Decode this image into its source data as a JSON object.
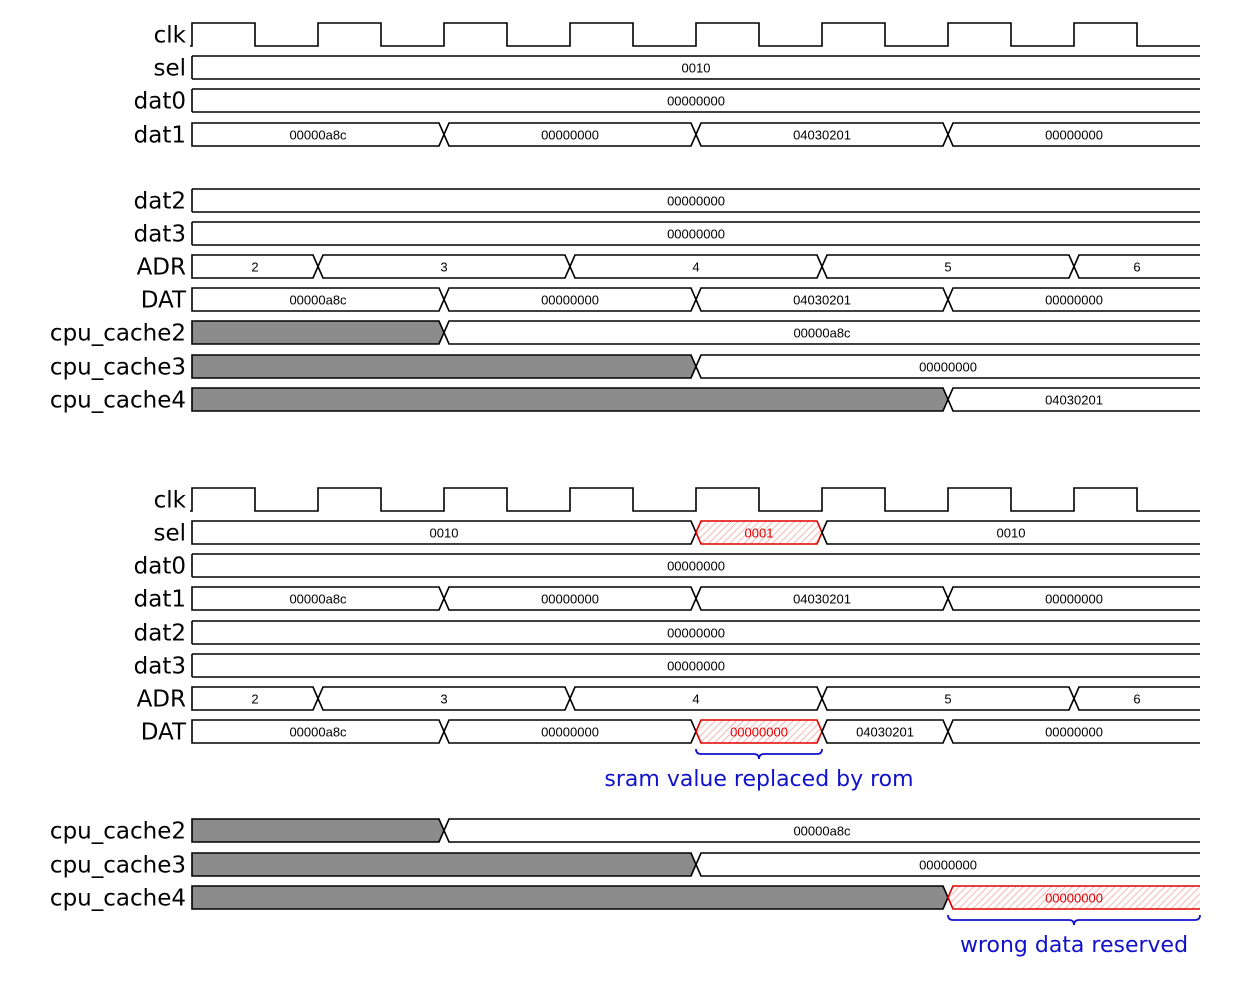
{
  "colors": {
    "line": "#000000",
    "unknown_fill": "#8c8c8c",
    "highlight": "#e00000",
    "annotation": "#1111cc"
  },
  "diagram_top": {
    "rows": [
      {
        "name": "clk",
        "type": "clock"
      },
      {
        "name": "sel",
        "segments": [
          {
            "value": "0010",
            "from": 0,
            "to": 16
          }
        ]
      },
      {
        "name": "dat0",
        "segments": [
          {
            "value": "00000000",
            "from": 0,
            "to": 16
          }
        ]
      },
      {
        "name": "dat1",
        "segments": [
          {
            "value": "00000a8c",
            "from": 0,
            "to": 4
          },
          {
            "value": "00000000",
            "from": 4,
            "to": 8
          },
          {
            "value": "04030201",
            "from": 8,
            "to": 12
          },
          {
            "value": "00000000",
            "from": 12,
            "to": 16
          }
        ]
      },
      {
        "name": "dat2",
        "segments": [
          {
            "value": "00000000",
            "from": 0,
            "to": 16
          }
        ]
      },
      {
        "name": "dat3",
        "segments": [
          {
            "value": "00000000",
            "from": 0,
            "to": 16
          }
        ]
      },
      {
        "name": "ADR",
        "segments": [
          {
            "value": "2",
            "from": 0,
            "to": 2
          },
          {
            "value": "3",
            "from": 2,
            "to": 6
          },
          {
            "value": "4",
            "from": 6,
            "to": 10
          },
          {
            "value": "5",
            "from": 10,
            "to": 14
          },
          {
            "value": "6",
            "from": 14,
            "to": 16
          }
        ]
      },
      {
        "name": "DAT",
        "segments": [
          {
            "value": "00000a8c",
            "from": 0,
            "to": 4
          },
          {
            "value": "00000000",
            "from": 4,
            "to": 8
          },
          {
            "value": "04030201",
            "from": 8,
            "to": 12
          },
          {
            "value": "00000000",
            "from": 12,
            "to": 16
          }
        ]
      },
      {
        "name": "cpu_cache2",
        "segments": [
          {
            "value": "",
            "from": 0,
            "to": 4,
            "style": "unknown"
          },
          {
            "value": "00000a8c",
            "from": 4,
            "to": 16
          }
        ]
      },
      {
        "name": "cpu_cache3",
        "segments": [
          {
            "value": "",
            "from": 0,
            "to": 8,
            "style": "unknown"
          },
          {
            "value": "00000000",
            "from": 8,
            "to": 16
          }
        ]
      },
      {
        "name": "cpu_cache4",
        "segments": [
          {
            "value": "",
            "from": 0,
            "to": 12,
            "style": "unknown"
          },
          {
            "value": "04030201",
            "from": 12,
            "to": 16
          }
        ]
      }
    ]
  },
  "diagram_bottom": {
    "rows": [
      {
        "name": "clk",
        "type": "clock"
      },
      {
        "name": "sel",
        "segments": [
          {
            "value": "0010",
            "from": 0,
            "to": 8
          },
          {
            "value": "0001",
            "from": 8,
            "to": 10,
            "style": "highlight"
          },
          {
            "value": "0010",
            "from": 10,
            "to": 16
          }
        ]
      },
      {
        "name": "dat0",
        "segments": [
          {
            "value": "00000000",
            "from": 0,
            "to": 16
          }
        ]
      },
      {
        "name": "dat1",
        "segments": [
          {
            "value": "00000a8c",
            "from": 0,
            "to": 4
          },
          {
            "value": "00000000",
            "from": 4,
            "to": 8
          },
          {
            "value": "04030201",
            "from": 8,
            "to": 12
          },
          {
            "value": "00000000",
            "from": 12,
            "to": 16
          }
        ]
      },
      {
        "name": "dat2",
        "segments": [
          {
            "value": "00000000",
            "from": 0,
            "to": 16
          }
        ]
      },
      {
        "name": "dat3",
        "segments": [
          {
            "value": "00000000",
            "from": 0,
            "to": 16
          }
        ]
      },
      {
        "name": "ADR",
        "segments": [
          {
            "value": "2",
            "from": 0,
            "to": 2
          },
          {
            "value": "3",
            "from": 2,
            "to": 6
          },
          {
            "value": "4",
            "from": 6,
            "to": 10
          },
          {
            "value": "5",
            "from": 10,
            "to": 14
          },
          {
            "value": "6",
            "from": 14,
            "to": 16
          }
        ]
      },
      {
        "name": "DAT",
        "segments": [
          {
            "value": "00000a8c",
            "from": 0,
            "to": 4
          },
          {
            "value": "00000000",
            "from": 4,
            "to": 8
          },
          {
            "value": "00000000",
            "from": 8,
            "to": 10,
            "style": "highlight"
          },
          {
            "value": "04030201",
            "from": 10,
            "to": 12
          },
          {
            "value": "00000000",
            "from": 12,
            "to": 16
          }
        ]
      },
      {
        "name": "cpu_cache2",
        "segments": [
          {
            "value": "",
            "from": 0,
            "to": 4,
            "style": "unknown"
          },
          {
            "value": "00000a8c",
            "from": 4,
            "to": 16
          }
        ]
      },
      {
        "name": "cpu_cache3",
        "segments": [
          {
            "value": "",
            "from": 0,
            "to": 8,
            "style": "unknown"
          },
          {
            "value": "00000000",
            "from": 8,
            "to": 16
          }
        ]
      },
      {
        "name": "cpu_cache4",
        "segments": [
          {
            "value": "",
            "from": 0,
            "to": 12,
            "style": "unknown"
          },
          {
            "value": "00000000",
            "from": 12,
            "to": 16,
            "style": "highlight"
          }
        ]
      }
    ],
    "annotations": [
      {
        "text": "sram value replaced by rom",
        "row": "DAT",
        "from": 8,
        "to": 10
      },
      {
        "text": "wrong data reserved",
        "row": "cpu_cache4",
        "from": 12,
        "to": 16
      }
    ]
  }
}
